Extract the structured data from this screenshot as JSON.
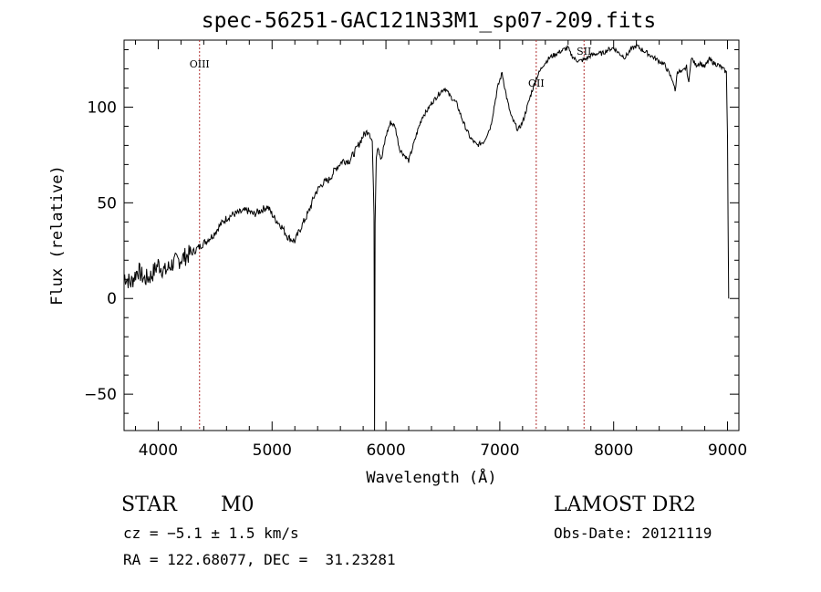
{
  "chart_data": {
    "type": "line",
    "title": "spec-56251-GAC121N33M1_sp07-209.fits",
    "xlabel": "Wavelength (Å)",
    "ylabel": "Flux (relative)",
    "xlim": [
      3700,
      9100
    ],
    "ylim": [
      -69,
      135
    ],
    "xticks": [
      4000,
      5000,
      6000,
      7000,
      8000,
      9000
    ],
    "yticks": [
      -50,
      0,
      50,
      100
    ],
    "grid": false,
    "series": [
      {
        "color": "#000000",
        "x": [
          3700,
          3760,
          3820,
          3880,
          3940,
          4000,
          4060,
          4120,
          4180,
          4240,
          4300,
          4360,
          4420,
          4480,
          4540,
          4600,
          4660,
          4720,
          4780,
          4840,
          4900,
          4960,
          5020,
          5080,
          5140,
          5200,
          5260,
          5320,
          5380,
          5440,
          5500,
          5560,
          5620,
          5680,
          5740,
          5800,
          5850,
          5880,
          5895,
          5900,
          5905,
          5915,
          5930,
          5960,
          6000,
          6040,
          6080,
          6120,
          6160,
          6200,
          6240,
          6280,
          6320,
          6360,
          6400,
          6440,
          6480,
          6520,
          6560,
          6620,
          6680,
          6740,
          6800,
          6860,
          6920,
          6980,
          7020,
          7060,
          7100,
          7160,
          7200,
          7240,
          7280,
          7320,
          7380,
          7440,
          7500,
          7560,
          7600,
          7620,
          7660,
          7700,
          7750,
          7800,
          7850,
          7900,
          7950,
          8000,
          8050,
          8100,
          8150,
          8200,
          8250,
          8300,
          8350,
          8400,
          8450,
          8500,
          8520,
          8540,
          8560,
          8600,
          8640,
          8660,
          8680,
          8720,
          8760,
          8800,
          8840,
          8880,
          8920,
          8960,
          8990,
          9000,
          9010
        ],
        "y": [
          12,
          8,
          15,
          10,
          12,
          18,
          14,
          18,
          20,
          22,
          24,
          27,
          30,
          33,
          38,
          42,
          44,
          45,
          46,
          44,
          46,
          48,
          42,
          38,
          32,
          30,
          38,
          45,
          55,
          60,
          62,
          68,
          72,
          72,
          78,
          85,
          88,
          82,
          45,
          -69,
          40,
          75,
          80,
          72,
          85,
          92,
          90,
          78,
          75,
          72,
          80,
          88,
          95,
          98,
          102,
          105,
          108,
          110,
          106,
          102,
          92,
          84,
          80,
          82,
          90,
          110,
          118,
          105,
          95,
          88,
          92,
          100,
          108,
          115,
          122,
          126,
          128,
          130,
          131,
          128,
          125,
          124,
          125,
          127,
          128,
          128,
          130,
          131,
          128,
          126,
          130,
          132,
          130,
          128,
          126,
          124,
          122,
          116,
          114,
          108,
          119,
          118,
          121,
          112,
          126,
          122,
          123,
          121,
          125,
          123,
          122,
          120,
          118,
          85,
          0
        ]
      }
    ],
    "line_markers": [
      {
        "label": "OIII",
        "x": 4363
      },
      {
        "label": "OII",
        "x": 7320
      },
      {
        "label": "SII",
        "x": 7740
      }
    ]
  },
  "info": {
    "obj_class": "STAR",
    "subclass": "M0",
    "survey": "LAMOST DR2",
    "velocity": "cz = −5.1 ± 1.5 km/s",
    "obs_date": "Obs-Date: 20121119",
    "coords": "RA = 122.68077, DEC =  31.23281"
  }
}
